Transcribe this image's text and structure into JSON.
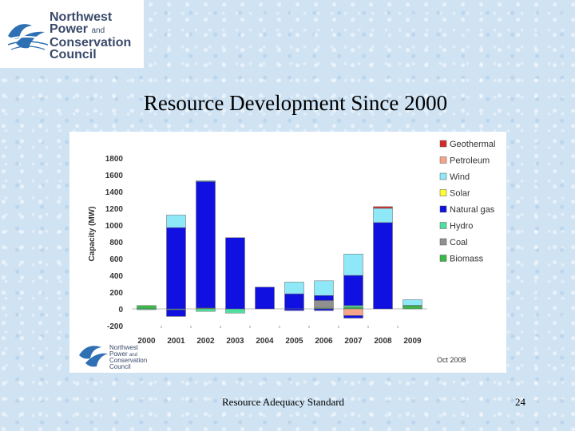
{
  "logo": {
    "line1": "Northwest",
    "line2": "Power",
    "line2_and": "and",
    "line3": "Conservation",
    "line4": "Council"
  },
  "slide": {
    "title": "Resource Development Since 2000",
    "footer": "Resource Adequacy Standard",
    "page_number": "24"
  },
  "chart_note": "Oct 2008",
  "colors": {
    "Geothermal": "#d42a2a",
    "Petroleum": "#f4a58a",
    "Wind": "#8fe8f8",
    "Solar": "#ffff33",
    "Natural gas": "#1010e0",
    "Hydro": "#4fe0a0",
    "Coal": "#909090",
    "Biomass": "#3cb84a"
  },
  "chart_data": {
    "type": "bar",
    "stacked": true,
    "title": "",
    "xlabel": "",
    "ylabel": "Capacity (MW)",
    "ylim": [
      -200,
      1800
    ],
    "yticks": [
      -200,
      0,
      200,
      400,
      600,
      800,
      1000,
      1200,
      1400,
      1600,
      1800
    ],
    "grid": false,
    "legend_position": "right",
    "categories": [
      "2000",
      "2001",
      "2002",
      "2003",
      "2004",
      "2005",
      "2006",
      "2007",
      "2008",
      "2009"
    ],
    "series": [
      {
        "name": "Geothermal",
        "values": [
          0,
          0,
          0,
          0,
          0,
          0,
          0,
          0,
          20,
          0
        ]
      },
      {
        "name": "Petroleum",
        "values": [
          0,
          0,
          0,
          0,
          0,
          0,
          0,
          -80,
          0,
          0
        ]
      },
      {
        "name": "Wind",
        "values": [
          0,
          150,
          10,
          0,
          0,
          140,
          175,
          255,
          170,
          65
        ]
      },
      {
        "name": "Solar",
        "values": [
          0,
          0,
          0,
          0,
          0,
          0,
          0,
          0,
          0,
          0
        ]
      },
      {
        "name": "Natural gas",
        "values": [
          0,
          970,
          1510,
          850,
          260,
          180,
          60,
          360,
          1030,
          0
        ]
      },
      {
        "name": "Hydro",
        "values": [
          -10,
          -10,
          -30,
          -50,
          0,
          0,
          0,
          20,
          0,
          10
        ]
      },
      {
        "name": "Coal",
        "values": [
          0,
          0,
          0,
          0,
          0,
          0,
          90,
          0,
          0,
          0
        ]
      },
      {
        "name": "Biomass",
        "values": [
          40,
          0,
          10,
          0,
          0,
          0,
          10,
          20,
          0,
          35
        ]
      }
    ],
    "negative_extras": [
      {
        "series": "Natural gas",
        "values": [
          0,
          -80,
          0,
          0,
          0,
          -20,
          -20,
          -30,
          0,
          0
        ]
      }
    ]
  }
}
